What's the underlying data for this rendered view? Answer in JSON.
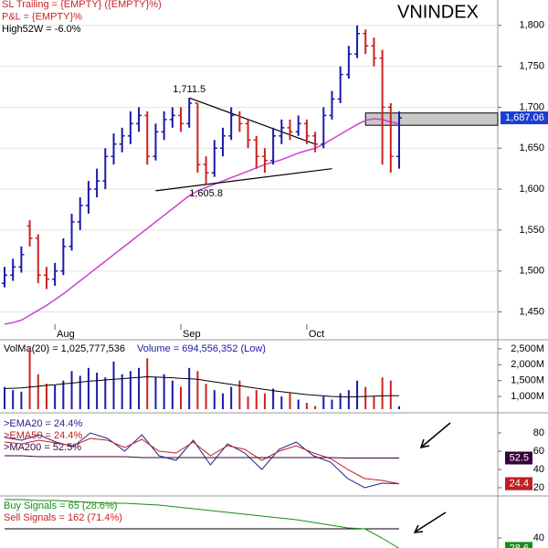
{
  "chart_data": [
    {
      "type": "ohlc",
      "title": "VNINDEX",
      "header": [
        {
          "text": "SL Trailing = {EMPTY} ({EMPTY}%)",
          "color": "#cc2222"
        },
        {
          "text": "P&L = {EMPTY}%",
          "color": "#cc2222"
        },
        {
          "text": "High52W = -6.0%",
          "color": "#000000"
        }
      ],
      "categories": [
        null,
        null,
        null,
        null,
        null,
        null,
        "Aug",
        null,
        null,
        null,
        null,
        null,
        null,
        null,
        null,
        null,
        null,
        null,
        null,
        null,
        null,
        "Sep",
        null,
        null,
        null,
        null,
        null,
        null,
        null,
        null,
        null,
        null,
        null,
        null,
        null,
        null,
        "Oct",
        null,
        null,
        null,
        null,
        null,
        null,
        null,
        null,
        null,
        null,
        null
      ],
      "open": [
        1485,
        1495,
        1505,
        1555,
        1540,
        1495,
        1490,
        1500,
        1530,
        1560,
        1580,
        1600,
        1610,
        1640,
        1655,
        1665,
        1680,
        1690,
        1640,
        1670,
        1685,
        1690,
        1680,
        1705,
        1630,
        1620,
        1650,
        1665,
        1690,
        1680,
        1660,
        1640,
        1635,
        1665,
        1675,
        1670,
        1680,
        1665,
        1655,
        1690,
        1710,
        1740,
        1765,
        1790,
        1775,
        1760,
        1700,
        1640
      ],
      "high": [
        1505,
        1515,
        1530,
        1562,
        1545,
        1505,
        1510,
        1540,
        1570,
        1590,
        1610,
        1625,
        1650,
        1668,
        1675,
        1695,
        1700,
        1695,
        1680,
        1695,
        1700,
        1700,
        1711.5,
        1705,
        1640,
        1660,
        1675,
        1700,
        1695,
        1685,
        1665,
        1650,
        1675,
        1685,
        1685,
        1690,
        1685,
        1670,
        1700,
        1720,
        1750,
        1775,
        1800,
        1795,
        1785,
        1770,
        1705,
        1695
      ],
      "low": [
        1480,
        1488,
        1498,
        1530,
        1485,
        1478,
        1482,
        1495,
        1525,
        1550,
        1570,
        1590,
        1600,
        1630,
        1645,
        1655,
        1670,
        1630,
        1635,
        1660,
        1675,
        1670,
        1675,
        1620,
        1605.8,
        1615,
        1640,
        1660,
        1670,
        1650,
        1625,
        1620,
        1630,
        1655,
        1660,
        1665,
        1655,
        1645,
        1650,
        1685,
        1705,
        1735,
        1760,
        1765,
        1750,
        1630,
        1620,
        1625
      ],
      "close": [
        1495,
        1505,
        1520,
        1540,
        1495,
        1490,
        1500,
        1530,
        1560,
        1580,
        1600,
        1610,
        1640,
        1655,
        1665,
        1680,
        1690,
        1640,
        1670,
        1685,
        1690,
        1680,
        1705,
        1630,
        1620,
        1650,
        1665,
        1690,
        1680,
        1660,
        1640,
        1635,
        1665,
        1675,
        1670,
        1680,
        1665,
        1655,
        1690,
        1710,
        1740,
        1765,
        1790,
        1775,
        1760,
        1700,
        1640,
        1687.06
      ],
      "last_label": "1,687.06",
      "up_color": "#1a1aa8",
      "down_color": "#cc2222",
      "tag_color": "#1a3fd0",
      "ma": {
        "color": "#d040d0",
        "values": [
          1435,
          1437,
          1440,
          1446,
          1452,
          1458,
          1465,
          1472,
          1480,
          1488,
          1496,
          1504,
          1512,
          1520,
          1528,
          1536,
          1544,
          1552,
          1560,
          1568,
          1576,
          1584,
          1592,
          1598,
          1602,
          1606,
          1610,
          1614,
          1618,
          1622,
          1626,
          1630,
          1633,
          1636,
          1640,
          1644,
          1647,
          1650,
          1655,
          1661,
          1667,
          1673,
          1679,
          1684,
          1686,
          1685,
          1682,
          1680
        ]
      },
      "trendlines": [
        {
          "x": [
            22,
            37
          ],
          "y": [
            1711.5,
            1655
          ]
        },
        {
          "x": [
            18,
            39
          ],
          "y": [
            1598,
            1625
          ]
        }
      ],
      "annotations": [
        {
          "x": 22,
          "value": 1711.5,
          "label": "1,711.5"
        },
        {
          "x": 24,
          "value": 1605.8,
          "label": "1,605.8"
        }
      ],
      "zone": {
        "x": 43,
        "low": 1678,
        "high": 1693
      },
      "ylim": [
        1435,
        1831
      ],
      "yticks": [
        {
          "value": 1450,
          "label": "1,450"
        },
        {
          "value": 1500,
          "label": "1,500"
        },
        {
          "value": 1550,
          "label": "1,550"
        },
        {
          "value": 1600,
          "label": "1,600"
        },
        {
          "value": 1650,
          "label": "1,650"
        },
        {
          "value": 1700,
          "label": "1,700"
        },
        {
          "value": 1750,
          "label": "1,750"
        },
        {
          "value": 1800,
          "label": "1,800"
        }
      ],
      "grid": true
    },
    {
      "type": "bar",
      "legend": [
        {
          "text": "VolMa(20) = 1,025,777,536",
          "color": "#000000"
        },
        {
          "text": "Volume = 694,556,352 (Low)",
          "color": "#1a1aa8"
        }
      ],
      "values": [
        1300,
        1200,
        1150,
        2500,
        1700,
        1400,
        1350,
        1500,
        1800,
        1650,
        1900,
        1750,
        1600,
        2100,
        1700,
        1800,
        1900,
        2200,
        1600,
        1700,
        1500,
        1300,
        1900,
        1800,
        1400,
        1200,
        1100,
        1300,
        1500,
        1000,
        1200,
        1100,
        1250,
        1000,
        1100,
        900,
        800,
        700,
        1000,
        900,
        1100,
        1200,
        1500,
        1300,
        1000,
        1600,
        1500,
        694.556352
      ],
      "ma": {
        "color": "#000000",
        "values": [
          1250,
          1260,
          1270,
          1300,
          1320,
          1350,
          1370,
          1400,
          1420,
          1450,
          1480,
          1500,
          1520,
          1540,
          1560,
          1580,
          1600,
          1620,
          1610,
          1600,
          1590,
          1570,
          1560,
          1540,
          1500,
          1460,
          1420,
          1380,
          1340,
          1300,
          1260,
          1220,
          1180,
          1150,
          1120,
          1090,
          1060,
          1040,
          1020,
          1000,
          990,
          985,
          990,
          1000,
          1010,
          1020,
          1025,
          1025.777536
        ]
      },
      "ylim": [
        600,
        2700
      ],
      "yticks": [
        {
          "value": 1000,
          "label": "1,000M"
        },
        {
          "value": 1500,
          "label": "1,500M"
        },
        {
          "value": 2000,
          "label": "2,000M"
        },
        {
          "value": 2500,
          "label": "2,500M"
        }
      ],
      "grid": false
    },
    {
      "type": "line",
      "series": [
        {
          "name": ">EMA20 = 24.4%",
          "color": "#23238c",
          "last_label": "24.4",
          "values": [
            75,
            72,
            78,
            70,
            65,
            80,
            74,
            60,
            78,
            55,
            50,
            72,
            45,
            68,
            58,
            40,
            62,
            70,
            55,
            48,
            30,
            20,
            25,
            24.4
          ]
        },
        {
          "name": ">EMA50 = 24.4%",
          "color": "#c02020",
          "last_label": "24.4",
          "values": [
            70,
            68,
            72,
            69,
            66,
            74,
            72,
            64,
            73,
            60,
            58,
            70,
            55,
            66,
            62,
            50,
            60,
            66,
            58,
            52,
            40,
            30,
            28,
            24.4
          ]
        },
        {
          "name": ">MA200 = 52.5%",
          "color": "#3a003a",
          "last_label": "52.5",
          "values": [
            55,
            55,
            54,
            54,
            54,
            54,
            54,
            54,
            53,
            53,
            53,
            53,
            53,
            53,
            53,
            53,
            53,
            53,
            53,
            53,
            52.5,
            52.5,
            52.5,
            52.5
          ]
        }
      ],
      "ylim": [
        14,
        99
      ],
      "yticks": [
        20,
        40,
        60,
        80
      ],
      "grid": false
    },
    {
      "type": "line",
      "series": [
        {
          "name": "Buy Signals = 65 (28.6%)",
          "color": "#1a8a1a",
          "last_label": "28.6",
          "values": [
            82,
            82,
            81,
            81,
            80,
            79,
            78,
            78,
            77,
            76,
            74,
            72,
            70,
            68,
            66,
            64,
            62,
            60,
            57,
            54,
            51,
            50,
            40,
            28.6
          ]
        }
      ],
      "legend_extra": [
        {
          "text": "Sell Signals = 162 (71.4%)",
          "color": "#cc2222"
        }
      ],
      "hline": 50,
      "ylim": [
        29,
        84
      ],
      "yticks": [
        40
      ],
      "grid": false
    }
  ]
}
